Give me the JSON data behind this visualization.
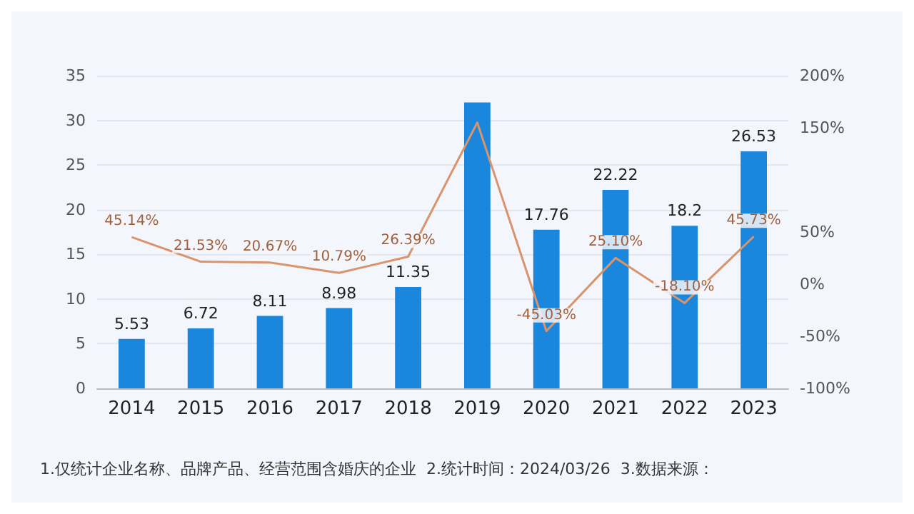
{
  "chart_data": {
    "type": "bar",
    "categories": [
      "2014",
      "2015",
      "2016",
      "2017",
      "2018",
      "2019",
      "2020",
      "2021",
      "2022",
      "2023"
    ],
    "series": [
      {
        "color": "#1a86dc",
        "values": [
          5.53,
          6.72,
          8.11,
          8.98,
          11.35,
          32,
          17.76,
          22.22,
          18.2,
          26.53
        ],
        "value_labels": [
          "5.53",
          "6.72",
          "8.11",
          "8.98",
          "11.35",
          null,
          "17.76",
          "22.22",
          "18.2",
          "26.53"
        ]
      },
      {
        "type": "line",
        "axis": "y2",
        "color": "#d9946c",
        "values": [
          45.14,
          21.53,
          20.67,
          10.79,
          26.39,
          155,
          -45.03,
          25.1,
          -18.1,
          45.73
        ],
        "value_labels": [
          "45.14%",
          "21.53%",
          "20.67%",
          "10.79%",
          "26.39%",
          null,
          "-45.03%",
          "25.10%",
          "-18.10%",
          "45.73%"
        ]
      }
    ],
    "ylim": [
      0,
      35
    ],
    "yticks": [
      0,
      5,
      10,
      15,
      20,
      25,
      30,
      35
    ],
    "y2lim": [
      -100,
      200
    ],
    "y2ticks": [
      {
        "value": -100,
        "label": "-100%"
      },
      {
        "value": -50,
        "label": "-50%"
      },
      {
        "value": 0,
        "label": "0%"
      },
      {
        "value": 50,
        "label": "50%"
      },
      {
        "value": 150,
        "label": "150%"
      },
      {
        "value": 200,
        "label": "200%"
      }
    ],
    "grid": "y",
    "marker": "none",
    "line_style": "solid",
    "annotations": [
      "1.仅统计企业名称、品牌产品、经营范围含婚庆的企业  2.统计时间：2024/03/26  3.数据来源："
    ]
  }
}
